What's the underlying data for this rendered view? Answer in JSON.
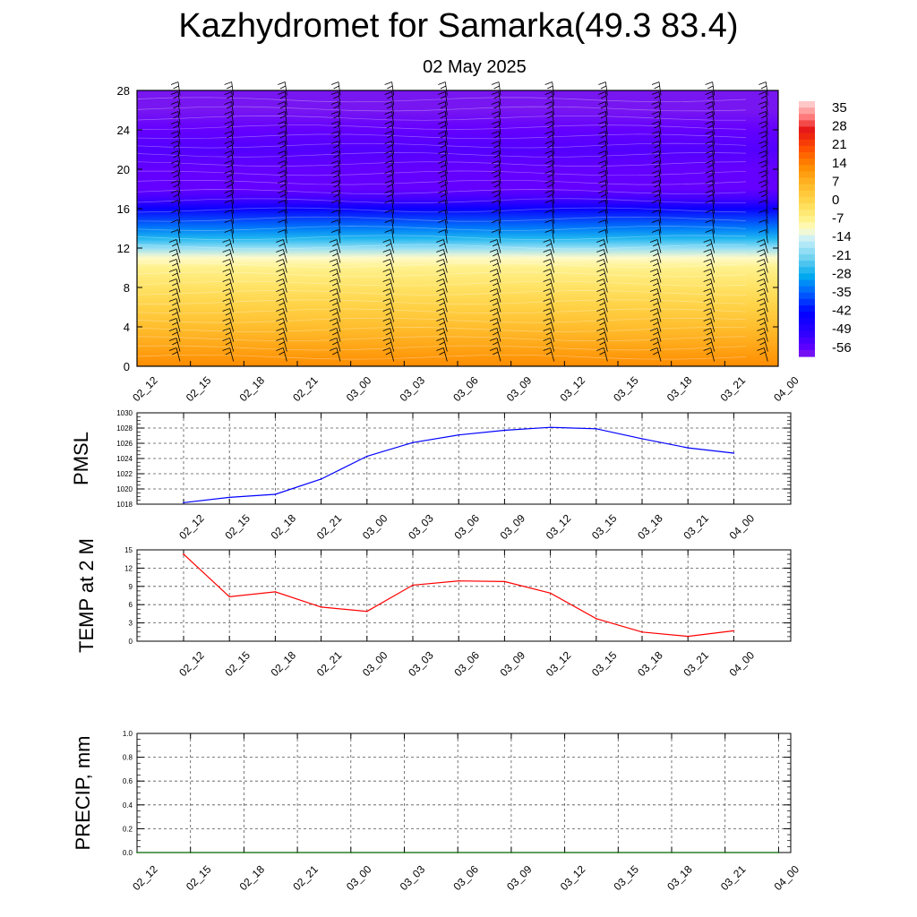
{
  "page": {
    "title": "Kazhydromet for Samarka(49.3 83.4)",
    "subtitle": "02 May 2025"
  },
  "colors": {
    "pmsl_line": "#0000ff",
    "temp_line": "#ff0000",
    "precip_line": "#006400",
    "barb": "#000000"
  },
  "chart_data": [
    {
      "type": "heatmap",
      "title": "",
      "y_ticks": [
        "0",
        "4",
        "8",
        "12",
        "16",
        "20",
        "24",
        "28"
      ],
      "ylim": [
        0,
        28
      ],
      "x_ticks": [
        "02_12",
        "02_15",
        "02_18",
        "02_21",
        "03_00",
        "03_03",
        "03_06",
        "03_09",
        "03_12",
        "03_15",
        "03_18",
        "03_21",
        "04_00"
      ],
      "colorbar_labels": [
        "35",
        "28",
        "21",
        "14",
        "7",
        "0",
        "-7",
        "-14",
        "-21",
        "-28",
        "-35",
        "-42",
        "-49",
        "-56"
      ],
      "colorbar_range": [
        -60,
        38
      ],
      "temperature_profile": {
        "levels": [
          0,
          2,
          4,
          6,
          8,
          10,
          11,
          12,
          13,
          14,
          16,
          17,
          18,
          20,
          22,
          24,
          26,
          28
        ],
        "values": [
          14,
          10,
          6,
          2,
          -2,
          -6,
          -10,
          -18,
          -26,
          -32,
          -44,
          -52,
          -56,
          -56,
          -54,
          -56,
          -58,
          -58
        ]
      }
    },
    {
      "type": "line",
      "title": "",
      "ylabel": "PMSL",
      "categories": [
        "02_12",
        "02_15",
        "02_18",
        "02_21",
        "03_00",
        "03_03",
        "03_06",
        "03_09",
        "03_12",
        "03_15",
        "03_18",
        "03_21",
        "04_00"
      ],
      "values": [
        1018.2,
        1018.9,
        1019.3,
        1021.3,
        1024.3,
        1026.1,
        1027.1,
        1027.7,
        1028.1,
        1027.9,
        1026.6,
        1025.4,
        1024.7
      ],
      "ylim": [
        1018,
        1030
      ],
      "y_ticks": [
        "1018",
        "1020",
        "1022",
        "1024",
        "1026",
        "1028",
        "1030"
      ]
    },
    {
      "type": "line",
      "title": "",
      "ylabel": "TEMP at 2 M",
      "categories": [
        "02_12",
        "02_15",
        "02_18",
        "02_21",
        "03_00",
        "03_03",
        "03_06",
        "03_09",
        "03_12",
        "03_15",
        "03_18",
        "03_21",
        "04_00"
      ],
      "values": [
        14.3,
        7.3,
        8.1,
        5.6,
        4.9,
        9.2,
        9.9,
        9.8,
        7.9,
        3.7,
        1.5,
        0.8,
        1.7
      ],
      "ylim": [
        0,
        15
      ],
      "y_ticks": [
        "0",
        "3",
        "6",
        "9",
        "12",
        "15"
      ]
    },
    {
      "type": "line",
      "title": "",
      "ylabel": "PRECIP, mm",
      "categories": [
        "02_12",
        "02_15",
        "02_18",
        "02_21",
        "03_00",
        "03_03",
        "03_06",
        "03_09",
        "03_12",
        "03_15",
        "03_18",
        "03_21",
        "04_00"
      ],
      "values": [
        0,
        0,
        0,
        0,
        0,
        0,
        0,
        0,
        0,
        0,
        0,
        0,
        0
      ],
      "ylim": [
        0,
        1
      ],
      "y_ticks": [
        "0.0",
        "0.2",
        "0.4",
        "0.6",
        "0.8",
        "1.0"
      ]
    }
  ]
}
